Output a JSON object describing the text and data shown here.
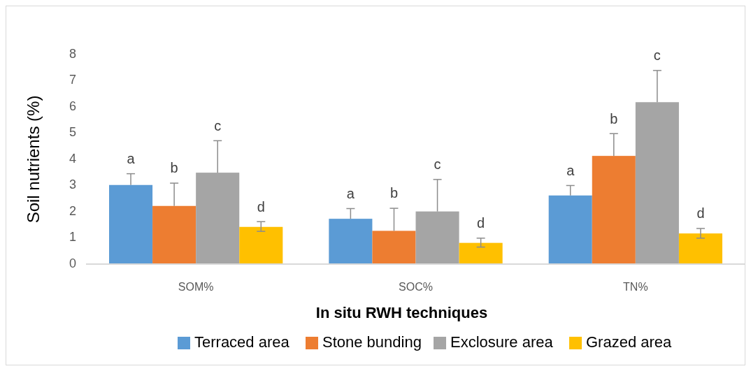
{
  "chart_data": {
    "type": "bar",
    "xlabel": "In situ RWH techniques",
    "ylabel": "Soil nutrients (%)",
    "categories": [
      "SOM%",
      "SOC%",
      "TN%"
    ],
    "series": [
      {
        "name": "Terraced area",
        "color": "#5b9bd5",
        "values": [
          3.02,
          1.73,
          2.62
        ],
        "errors": [
          [
            3.02,
            3.45
          ],
          [
            1.73,
            2.12
          ],
          [
            2.62,
            3.0
          ]
        ]
      },
      {
        "name": "Stone bunding",
        "color": "#ed7d31",
        "values": [
          2.22,
          1.27,
          4.13
        ],
        "errors": [
          [
            2.22,
            3.09
          ],
          [
            1.27,
            2.13
          ],
          [
            4.13,
            4.98
          ]
        ]
      },
      {
        "name": "Exclosure area",
        "color": "#a5a5a5",
        "values": [
          3.49,
          2.01,
          6.18
        ],
        "errors": [
          [
            3.49,
            4.71
          ],
          [
            2.01,
            3.23
          ],
          [
            6.18,
            7.39
          ]
        ]
      },
      {
        "name": "Grazed area",
        "color": "#ffc000",
        "values": [
          1.42,
          0.81,
          1.17
        ],
        "errors": [
          [
            1.25,
            1.62
          ],
          [
            0.65,
            0.99
          ],
          [
            0.99,
            1.36
          ]
        ]
      }
    ],
    "ylim": [
      0,
      8
    ],
    "yticks": [
      0,
      1,
      2,
      3,
      4,
      5,
      6,
      7,
      8
    ],
    "grid": false,
    "legend": "bottom",
    "annotations": [
      "a",
      "b",
      "c",
      "d",
      "a",
      "b",
      "c",
      "d",
      "a",
      "b",
      "c",
      "d"
    ]
  }
}
